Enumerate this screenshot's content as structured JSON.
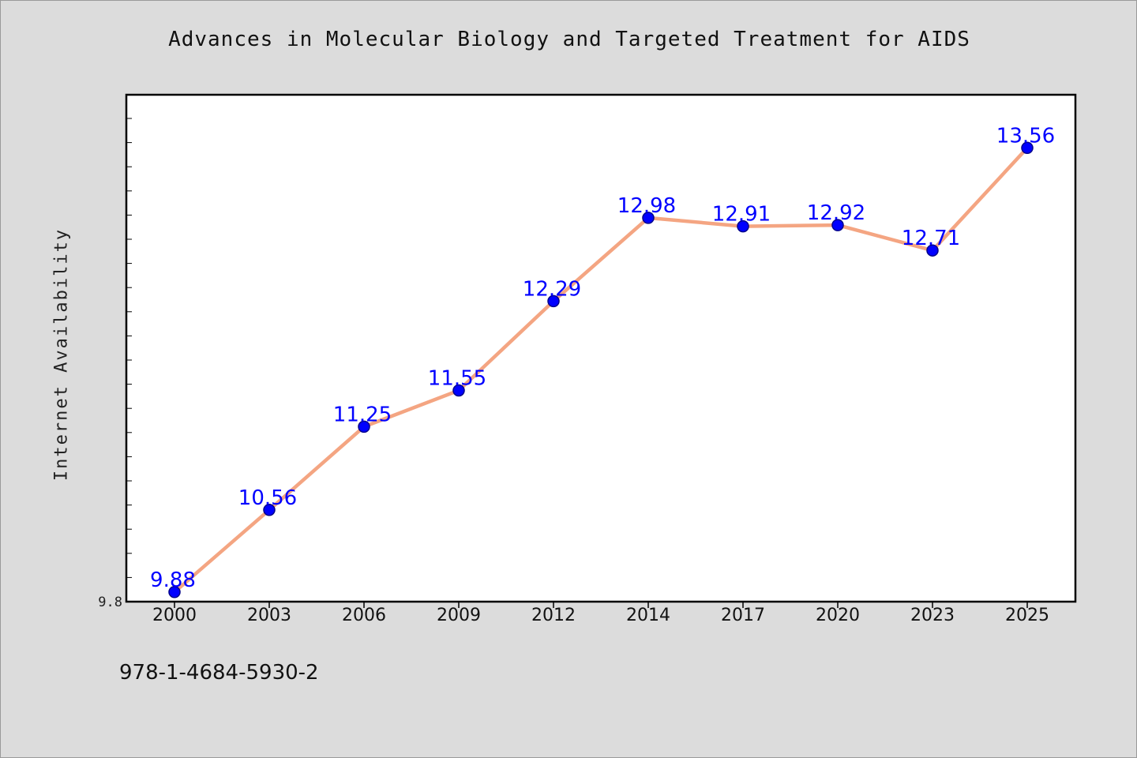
{
  "chart_data": {
    "type": "line",
    "title": "Advances in Molecular Biology and Targeted Treatment for AIDS",
    "xlabel": "",
    "ylabel": "Internet Availability",
    "categories": [
      "2000",
      "2003",
      "2006",
      "2009",
      "2012",
      "2014",
      "2017",
      "2020",
      "2023",
      "2025"
    ],
    "series": [
      {
        "values": [
          9.88,
          10.56,
          11.25,
          11.55,
          12.29,
          12.98,
          12.91,
          12.92,
          12.71,
          13.56
        ]
      }
    ],
    "data_labels": [
      "9.88",
      "10.56",
      "11.25",
      "11.55",
      "12.29",
      "12.98",
      "12.91",
      "12.92",
      "12.71",
      "13.56"
    ],
    "ylim": [
      9.8,
      14.0
    ],
    "y_tick_labels": [
      "9.8"
    ],
    "grid": false,
    "colors": {
      "line": "#f4a582",
      "marker": "#0000ff",
      "marker_edge": "#00008b",
      "data_label": "#0000ff",
      "background": "#dcdcdc",
      "plot_background": "#ffffff"
    }
  },
  "footer": {
    "isbn": "978-1-4684-5930-2"
  }
}
